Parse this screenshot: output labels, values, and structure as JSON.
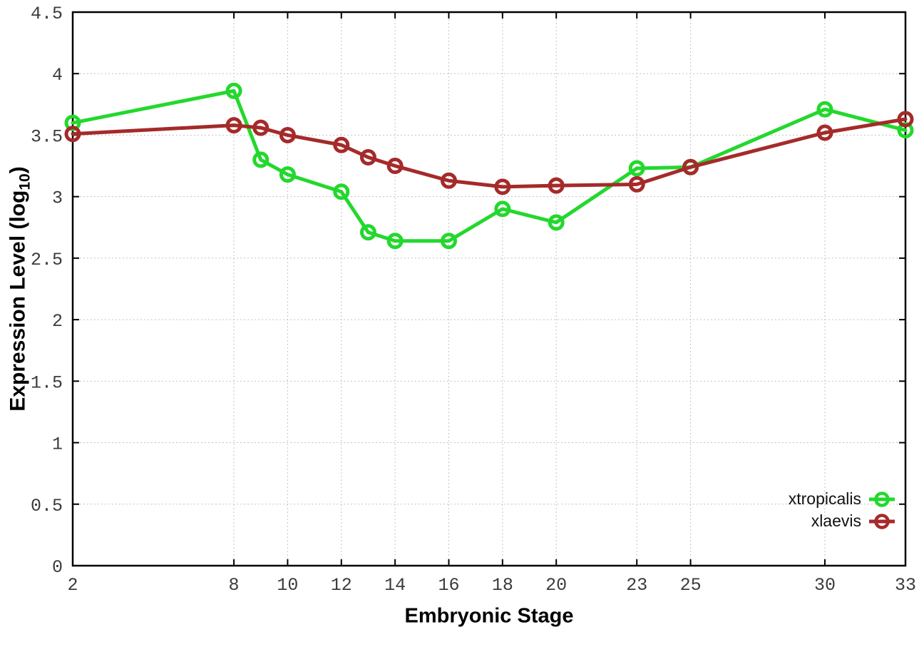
{
  "chart_data": {
    "type": "line",
    "title": "",
    "xlabel": "Embryonic Stage",
    "ylabel_prefix": "Expression Level (log",
    "ylabel_sub": "10",
    "ylabel_suffix": ")",
    "x": [
      2,
      8,
      9,
      10,
      12,
      13,
      14,
      16,
      18,
      20,
      23,
      25,
      30,
      33
    ],
    "xticks": [
      2,
      8,
      10,
      12,
      14,
      16,
      18,
      20,
      23,
      25,
      30,
      33
    ],
    "yticks": [
      0,
      0.5,
      1,
      1.5,
      2,
      2.5,
      3,
      3.5,
      4,
      4.5
    ],
    "xlim": [
      2,
      33
    ],
    "ylim": [
      0,
      4.5
    ],
    "grid": true,
    "legend_position": "inside-bottom-right",
    "marker": "open-circle",
    "series": [
      {
        "name": "xtropicalis",
        "color": "#23d82d",
        "values": [
          3.6,
          3.86,
          3.3,
          3.18,
          3.04,
          2.71,
          2.64,
          2.64,
          2.9,
          2.79,
          3.23,
          3.24,
          3.71,
          3.54
        ]
      },
      {
        "name": "xlaevis",
        "color": "#a52a2a",
        "values": [
          3.51,
          3.58,
          3.56,
          3.5,
          3.42,
          3.32,
          3.25,
          3.13,
          3.08,
          3.09,
          3.1,
          3.24,
          3.52,
          3.63
        ]
      }
    ],
    "colors": {
      "grid": "#c4c4c4",
      "border": "#000000",
      "tick_text": "#3c3c3c"
    }
  }
}
